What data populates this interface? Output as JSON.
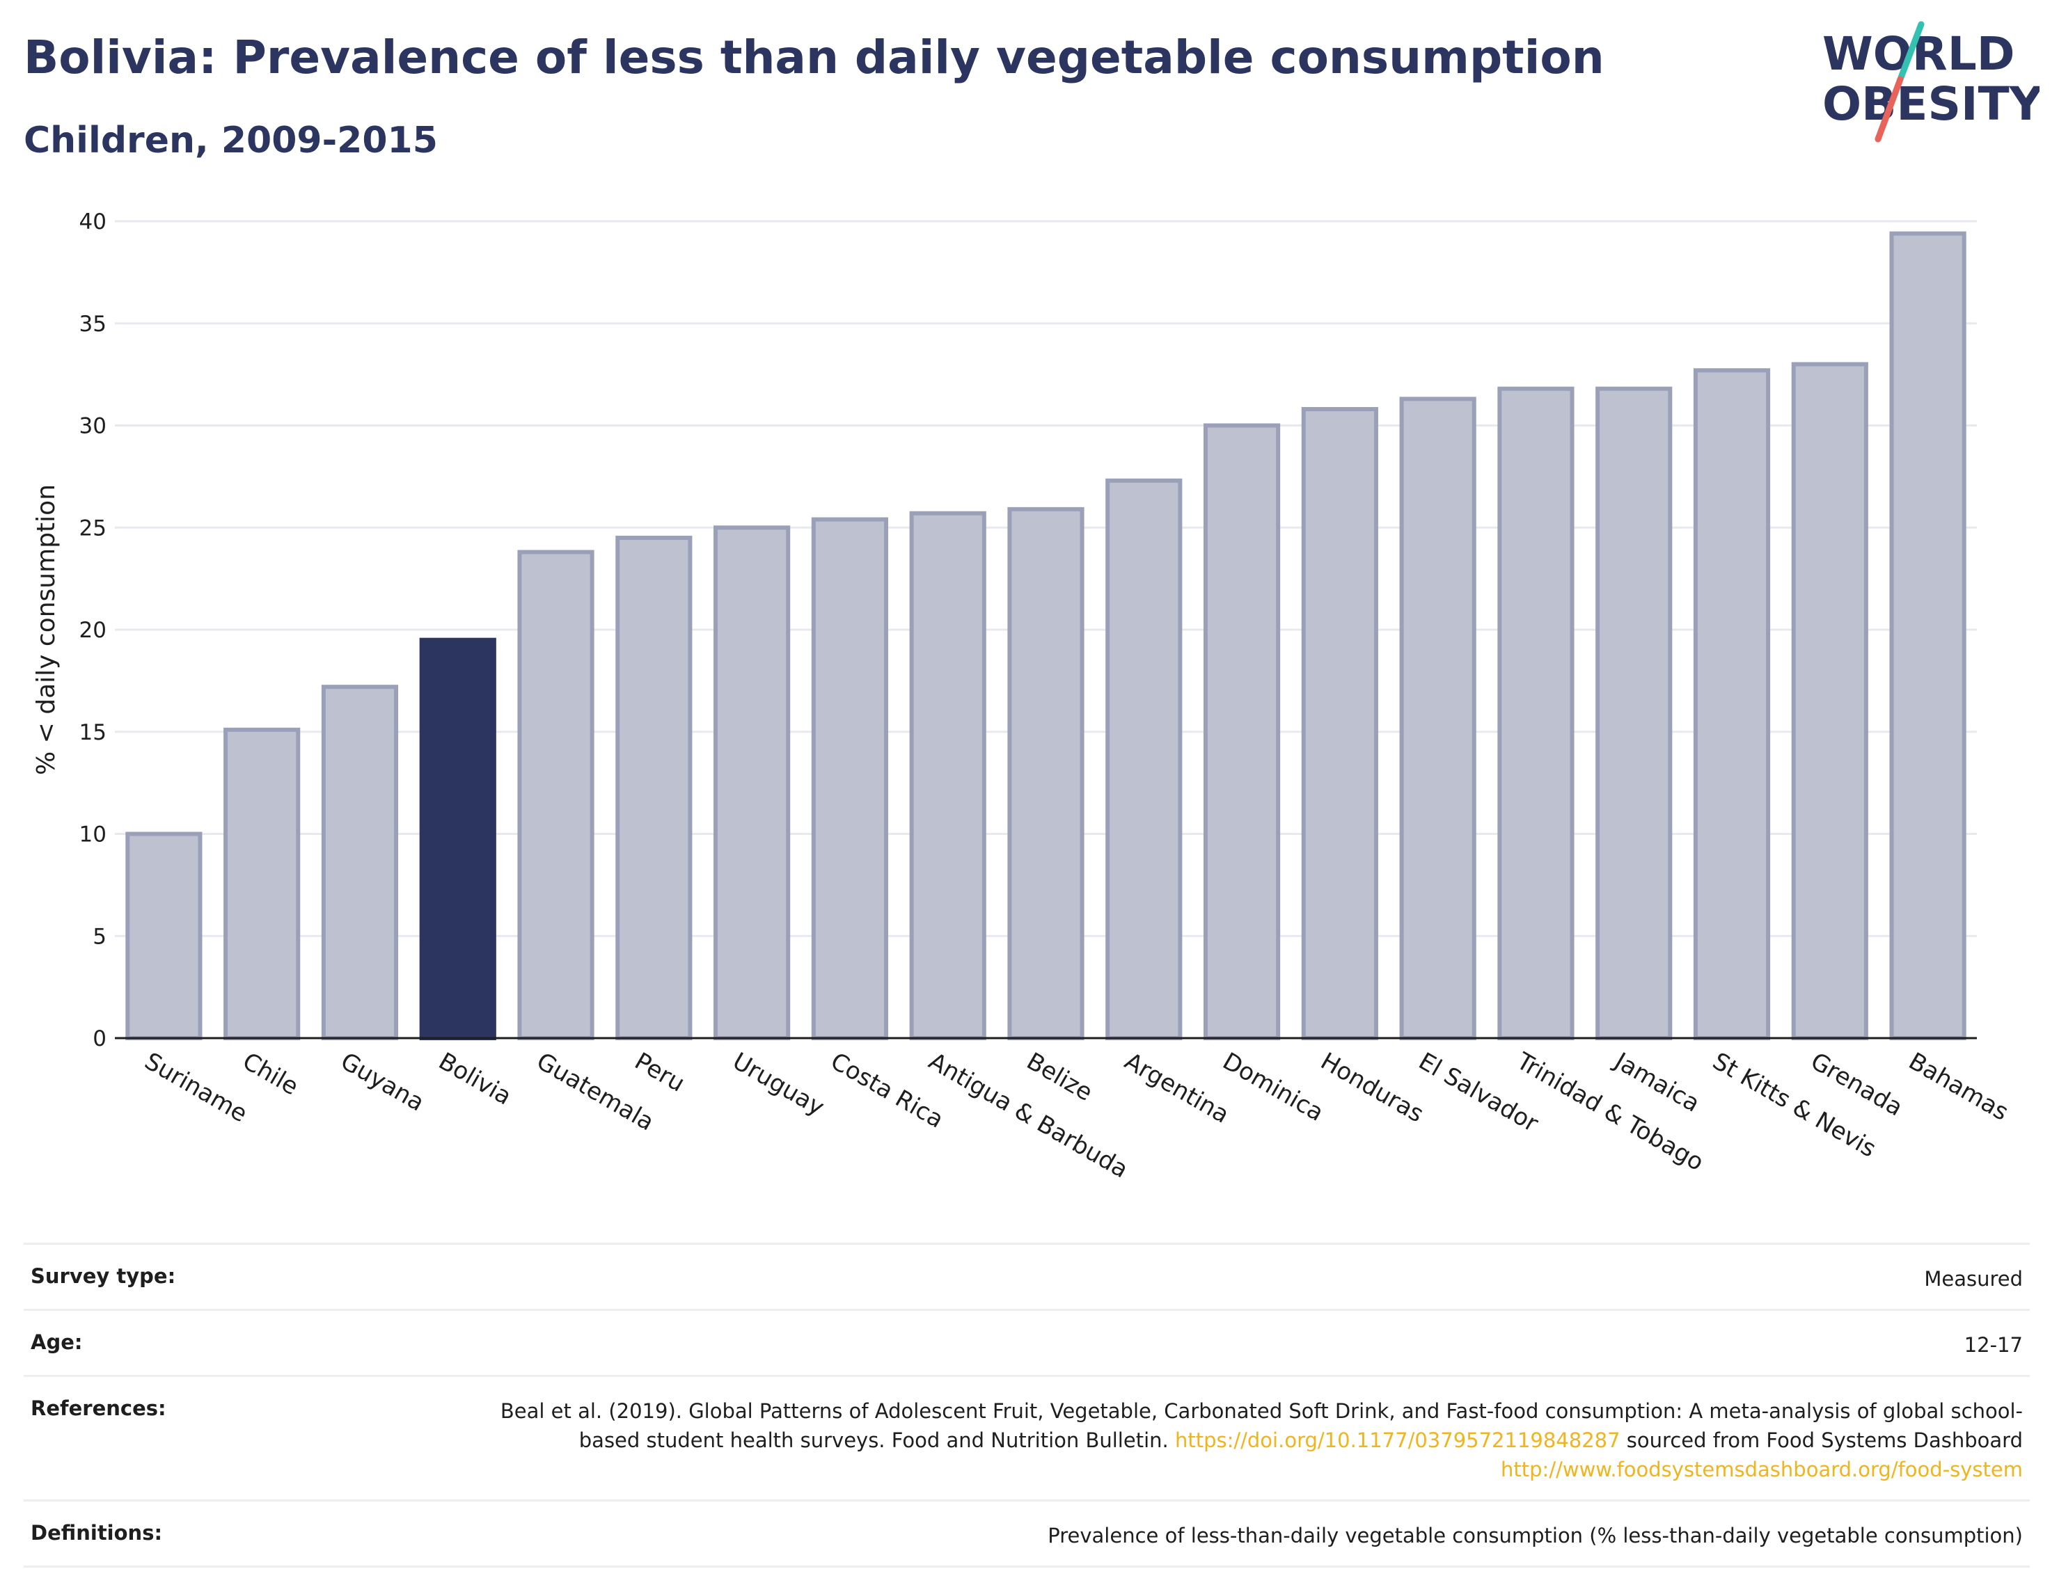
{
  "header": {
    "title": "Bolivia: Prevalence of less than daily vegetable consumption",
    "subtitle": "Children, 2009-2015"
  },
  "logo": {
    "line1": "WORLD",
    "line2": "OBESITY",
    "accent_teal": "#33c1b1",
    "accent_red": "#e8645a",
    "text_color": "#2b3560"
  },
  "colors": {
    "bar_default": "#bec2d0",
    "bar_border": "#9aa0b8",
    "bar_highlight": "#2b3560",
    "grid": "#e8e9ef"
  },
  "chart_data": {
    "type": "bar",
    "categories": [
      "Suriname",
      "Chile",
      "Guyana",
      "Bolivia",
      "Guatemala",
      "Peru",
      "Uruguay",
      "Costa Rica",
      "Antigua & Barbuda",
      "Belize",
      "Argentina",
      "Dominica",
      "Honduras",
      "El Salvador",
      "Trinidad & Tobago",
      "Jamaica",
      "St Kitts & Nevis",
      "Grenada",
      "Bahamas"
    ],
    "values": [
      10.0,
      15.1,
      17.2,
      19.5,
      23.8,
      24.5,
      25.0,
      25.4,
      25.7,
      25.9,
      27.3,
      30.0,
      30.8,
      31.3,
      31.8,
      31.8,
      32.7,
      33.0,
      39.4
    ],
    "highlight": "Bolivia",
    "ylabel": "% < daily consumption",
    "xlabel": "",
    "ylim": [
      0,
      40
    ],
    "yticks": [
      0,
      5,
      10,
      15,
      20,
      25,
      30,
      35,
      40
    ],
    "grid": true
  },
  "info": {
    "survey_type_label": "Survey type:",
    "survey_type_value": "Measured",
    "age_label": "Age:",
    "age_value": "12-17",
    "references_label": "References:",
    "references_text1": "Beal et al. (2019). Global Patterns of Adolescent Fruit, Vegetable, Carbonated Soft Drink, and Fast-food consumption: A meta-analysis of global school-based student health surveys. Food and Nutrition Bulletin.",
    "references_link1": "https://doi.org/10.1177/0379572119848287",
    "references_text2": "sourced from Food Systems Dashboard",
    "references_link2": "http://www.foodsystemsdashboard.org/food-system",
    "definitions_label": "Definitions:",
    "definitions_value": "Prevalence of less-than-daily vegetable consumption (% less-than-daily vegetable consumption)"
  }
}
